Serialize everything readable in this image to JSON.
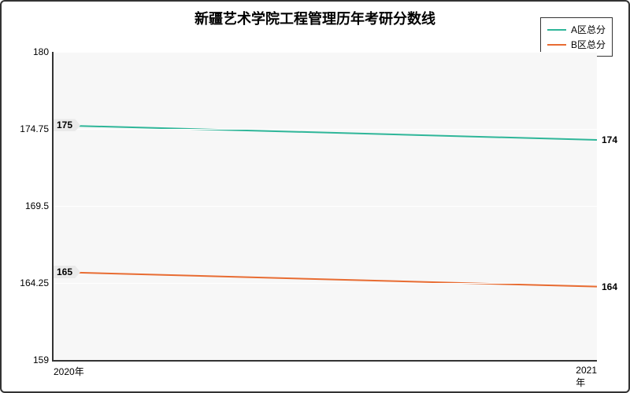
{
  "chart": {
    "type": "line",
    "title": "新疆艺术学院工程管理历年考研分数线",
    "title_fontsize": 18,
    "background_color": "#ffffff",
    "plot_background_color": "#f7f7f7",
    "border_color": "#333333",
    "grid_color": "#ffffff",
    "label_fontsize": 12,
    "line_width": 2,
    "x_categories": [
      "2020年",
      "2021年"
    ],
    "ylim": [
      159,
      180
    ],
    "y_ticks": [
      159,
      164.25,
      169.5,
      174.75,
      180
    ],
    "y_tick_labels": [
      "159",
      "164.25",
      "169.5",
      "174.75",
      "180"
    ],
    "series": [
      {
        "name": "A区总分",
        "color": "#2fb699",
        "values": [
          175,
          174
        ],
        "point_labels": [
          "175",
          "174"
        ]
      },
      {
        "name": "B区总分",
        "color": "#e86c32",
        "values": [
          165,
          164
        ],
        "point_labels": [
          "165",
          "164"
        ]
      }
    ]
  }
}
